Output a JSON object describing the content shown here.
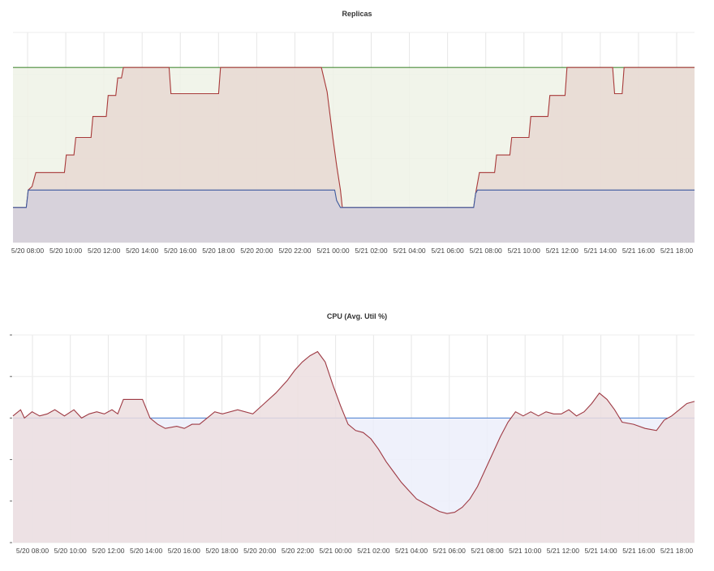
{
  "chart_data": [
    {
      "type": "area",
      "title": "Replicas",
      "x_ticks": [
        "5/20 08:00",
        "5/20 10:00",
        "5/20 12:00",
        "5/20 14:00",
        "5/20 16:00",
        "5/20 18:00",
        "5/20 20:00",
        "5/20 22:00",
        "5/21 00:00",
        "5/21 02:00",
        "5/21 04:00",
        "5/21 06:00",
        "5/21 08:00",
        "5/21 10:00",
        "5/21 12:00",
        "5/21 14:00",
        "5/21 16:00",
        "5/21 18:00"
      ],
      "xlim": [
        7.8,
        43.6
      ],
      "ylim": [
        0,
        6
      ],
      "grid": true,
      "series": [
        {
          "color": "#4a8c3a",
          "fill": "#eef2e6",
          "points": [
            [
              7.8,
              5
            ],
            [
              43.6,
              5
            ]
          ]
        },
        {
          "color": "#a83a3a",
          "fill": "#e8d8d2",
          "points": [
            [
              7.8,
              1
            ],
            [
              8.5,
              1
            ],
            [
              8.6,
              1.5
            ],
            [
              8.8,
              1.6
            ],
            [
              9.0,
              2
            ],
            [
              10.5,
              2
            ],
            [
              10.6,
              2.5
            ],
            [
              11.0,
              2.5
            ],
            [
              11.1,
              3
            ],
            [
              11.9,
              3
            ],
            [
              12.0,
              3.6
            ],
            [
              12.7,
              3.6
            ],
            [
              12.8,
              4.2
            ],
            [
              13.2,
              4.2
            ],
            [
              13.3,
              4.7
            ],
            [
              13.5,
              4.7
            ],
            [
              13.6,
              5
            ],
            [
              16.0,
              5
            ],
            [
              16.1,
              4.25
            ],
            [
              18.6,
              4.25
            ],
            [
              18.7,
              5
            ],
            [
              24.0,
              5
            ],
            [
              24.3,
              4.3
            ],
            [
              24.6,
              3
            ],
            [
              24.8,
              2.2
            ],
            [
              25.0,
              1.5
            ],
            [
              25.1,
              1
            ],
            [
              32.0,
              1
            ],
            [
              32.1,
              1.4
            ],
            [
              32.3,
              2
            ],
            [
              33.1,
              2
            ],
            [
              33.2,
              2.5
            ],
            [
              33.9,
              2.5
            ],
            [
              34.0,
              3
            ],
            [
              34.9,
              3
            ],
            [
              35.0,
              3.6
            ],
            [
              35.9,
              3.6
            ],
            [
              36.0,
              4.2
            ],
            [
              36.8,
              4.2
            ],
            [
              36.9,
              5
            ],
            [
              39.3,
              5
            ],
            [
              39.4,
              4.25
            ],
            [
              39.8,
              4.25
            ],
            [
              39.9,
              5
            ],
            [
              43.6,
              5
            ]
          ]
        },
        {
          "color": "#3d5a9e",
          "fill": "#d3d0dc",
          "points": [
            [
              7.8,
              1
            ],
            [
              8.5,
              1
            ],
            [
              8.6,
              1.5
            ],
            [
              24.7,
              1.5
            ],
            [
              24.8,
              1.2
            ],
            [
              25.0,
              1
            ],
            [
              32.0,
              1
            ],
            [
              32.1,
              1.4
            ],
            [
              32.2,
              1.5
            ],
            [
              43.6,
              1.5
            ]
          ]
        }
      ]
    },
    {
      "type": "area",
      "title": "CPU (Avg. Util %)",
      "x_ticks": [
        "5/20 08:00",
        "5/20 10:00",
        "5/20 12:00",
        "5/20 14:00",
        "5/20 16:00",
        "5/20 18:00",
        "5/20 20:00",
        "5/20 22:00",
        "5/21 00:00",
        "5/21 02:00",
        "5/21 04:00",
        "5/21 06:00",
        "5/21 08:00",
        "5/21 10:00",
        "5/21 12:00",
        "5/21 14:00",
        "5/21 16:00",
        "5/21 18:00"
      ],
      "xlim": [
        7.8,
        43.6
      ],
      "ylim": [
        0,
        5
      ],
      "grid": true,
      "series": [
        {
          "color": "#5b8cd6",
          "fill": "#eceffa",
          "points": [
            [
              7.8,
              3
            ],
            [
              43.6,
              3
            ]
          ]
        },
        {
          "color": "#9e3a44",
          "fill": "#ecdedf",
          "points": [
            [
              7.8,
              3.05
            ],
            [
              8.2,
              3.2
            ],
            [
              8.4,
              3.0
            ],
            [
              8.8,
              3.15
            ],
            [
              9.2,
              3.05
            ],
            [
              9.6,
              3.1
            ],
            [
              10.0,
              3.2
            ],
            [
              10.5,
              3.05
            ],
            [
              11.0,
              3.2
            ],
            [
              11.4,
              3.0
            ],
            [
              11.8,
              3.1
            ],
            [
              12.2,
              3.15
            ],
            [
              12.6,
              3.1
            ],
            [
              13.0,
              3.2
            ],
            [
              13.3,
              3.1
            ],
            [
              13.6,
              3.45
            ],
            [
              14.6,
              3.45
            ],
            [
              15.0,
              3.0
            ],
            [
              15.4,
              2.85
            ],
            [
              15.8,
              2.75
            ],
            [
              16.4,
              2.8
            ],
            [
              16.8,
              2.75
            ],
            [
              17.2,
              2.85
            ],
            [
              17.6,
              2.85
            ],
            [
              18.0,
              3.0
            ],
            [
              18.4,
              3.15
            ],
            [
              18.8,
              3.1
            ],
            [
              19.6,
              3.2
            ],
            [
              20.4,
              3.1
            ],
            [
              21.0,
              3.35
            ],
            [
              21.6,
              3.6
            ],
            [
              22.2,
              3.9
            ],
            [
              22.6,
              4.15
            ],
            [
              23.0,
              4.35
            ],
            [
              23.4,
              4.5
            ],
            [
              23.8,
              4.6
            ],
            [
              24.2,
              4.35
            ],
            [
              24.6,
              3.8
            ],
            [
              25.0,
              3.3
            ],
            [
              25.4,
              2.85
            ],
            [
              25.8,
              2.7
            ],
            [
              26.2,
              2.65
            ],
            [
              26.6,
              2.5
            ],
            [
              27.0,
              2.25
            ],
            [
              27.4,
              1.95
            ],
            [
              27.8,
              1.7
            ],
            [
              28.2,
              1.45
            ],
            [
              28.6,
              1.25
            ],
            [
              29.0,
              1.05
            ],
            [
              29.4,
              0.95
            ],
            [
              29.8,
              0.85
            ],
            [
              30.2,
              0.75
            ],
            [
              30.6,
              0.7
            ],
            [
              31.0,
              0.73
            ],
            [
              31.4,
              0.85
            ],
            [
              31.8,
              1.05
            ],
            [
              32.2,
              1.35
            ],
            [
              32.6,
              1.75
            ],
            [
              33.0,
              2.15
            ],
            [
              33.4,
              2.55
            ],
            [
              33.8,
              2.9
            ],
            [
              34.2,
              3.15
            ],
            [
              34.6,
              3.05
            ],
            [
              35.0,
              3.15
            ],
            [
              35.4,
              3.05
            ],
            [
              35.8,
              3.15
            ],
            [
              36.2,
              3.1
            ],
            [
              36.6,
              3.1
            ],
            [
              37.0,
              3.2
            ],
            [
              37.4,
              3.05
            ],
            [
              37.8,
              3.15
            ],
            [
              38.2,
              3.35
            ],
            [
              38.6,
              3.6
            ],
            [
              39.0,
              3.45
            ],
            [
              39.4,
              3.2
            ],
            [
              39.8,
              2.9
            ],
            [
              40.4,
              2.85
            ],
            [
              41.0,
              2.75
            ],
            [
              41.6,
              2.7
            ],
            [
              42.0,
              2.95
            ],
            [
              42.4,
              3.05
            ],
            [
              42.8,
              3.2
            ],
            [
              43.2,
              3.35
            ],
            [
              43.6,
              3.4
            ]
          ]
        }
      ]
    }
  ]
}
